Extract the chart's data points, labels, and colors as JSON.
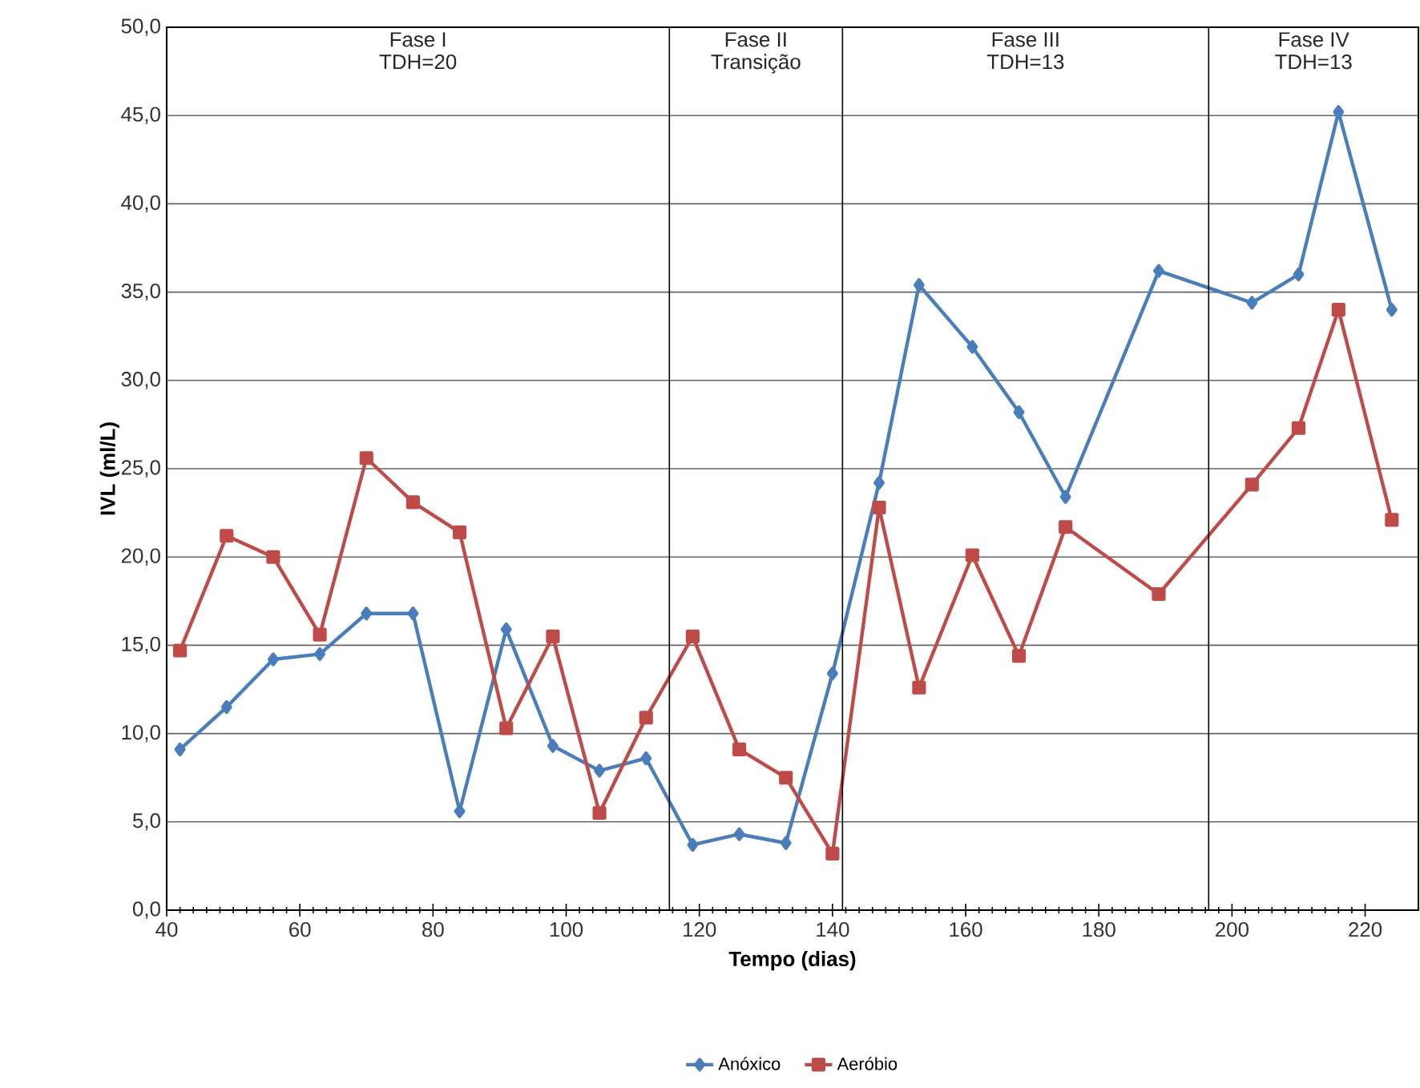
{
  "chart_data": {
    "type": "line",
    "xlabel": "Tempo (dias)",
    "ylabel": "IVL (ml/L)",
    "x": [
      42,
      49,
      56,
      63,
      70,
      77,
      84,
      91,
      98,
      105,
      112,
      119,
      126,
      133,
      140,
      147,
      153,
      161,
      168,
      175,
      189,
      203,
      210,
      216,
      224
    ],
    "series": [
      {
        "name": "Anóxico",
        "color": "#4a7ebb",
        "marker": "diamond",
        "values": [
          9.1,
          11.5,
          14.2,
          14.5,
          16.8,
          16.8,
          5.6,
          15.9,
          9.3,
          7.9,
          8.6,
          3.7,
          4.3,
          3.8,
          13.4,
          24.2,
          35.4,
          31.9,
          28.2,
          23.4,
          36.2,
          34.4,
          36.0,
          45.2,
          34.0
        ]
      },
      {
        "name": "Aeróbio",
        "color": "#be4b48",
        "marker": "square",
        "values": [
          14.7,
          21.2,
          20.0,
          15.6,
          25.6,
          23.1,
          21.4,
          10.3,
          15.5,
          5.5,
          10.9,
          15.5,
          9.1,
          7.5,
          3.2,
          22.8,
          12.6,
          20.1,
          14.4,
          21.7,
          17.9,
          24.1,
          27.3,
          34.0,
          22.1
        ]
      }
    ],
    "xlim": [
      40,
      228
    ],
    "xticks": [
      40,
      60,
      80,
      100,
      120,
      140,
      160,
      180,
      200,
      220
    ],
    "ylim": [
      0,
      50
    ],
    "yticks": [
      {
        "value": 0,
        "label": "0,0"
      },
      {
        "value": 5,
        "label": "5,0"
      },
      {
        "value": 10,
        "label": "10,0"
      },
      {
        "value": 15,
        "label": "15,0"
      },
      {
        "value": 20,
        "label": "20,0"
      },
      {
        "value": 25,
        "label": "25,0"
      },
      {
        "value": 30,
        "label": "30,0"
      },
      {
        "value": 35,
        "label": "35,0"
      },
      {
        "value": 40,
        "label": "40,0"
      },
      {
        "value": 45,
        "label": "45,0"
      },
      {
        "value": 50,
        "label": "50,0"
      }
    ],
    "grid": "y",
    "legend": "bottom",
    "line_style": "solid",
    "ref_lines": [
      {
        "axis": "x",
        "value": 115.5
      },
      {
        "axis": "x",
        "value": 141.5
      },
      {
        "axis": "x",
        "value": 196.5
      }
    ],
    "annotations": [
      "Fase I",
      "TDH=20",
      "Fase II",
      "Transição",
      "Fase III",
      "TDH=13",
      "Fase IV",
      "TDH=13"
    ]
  }
}
